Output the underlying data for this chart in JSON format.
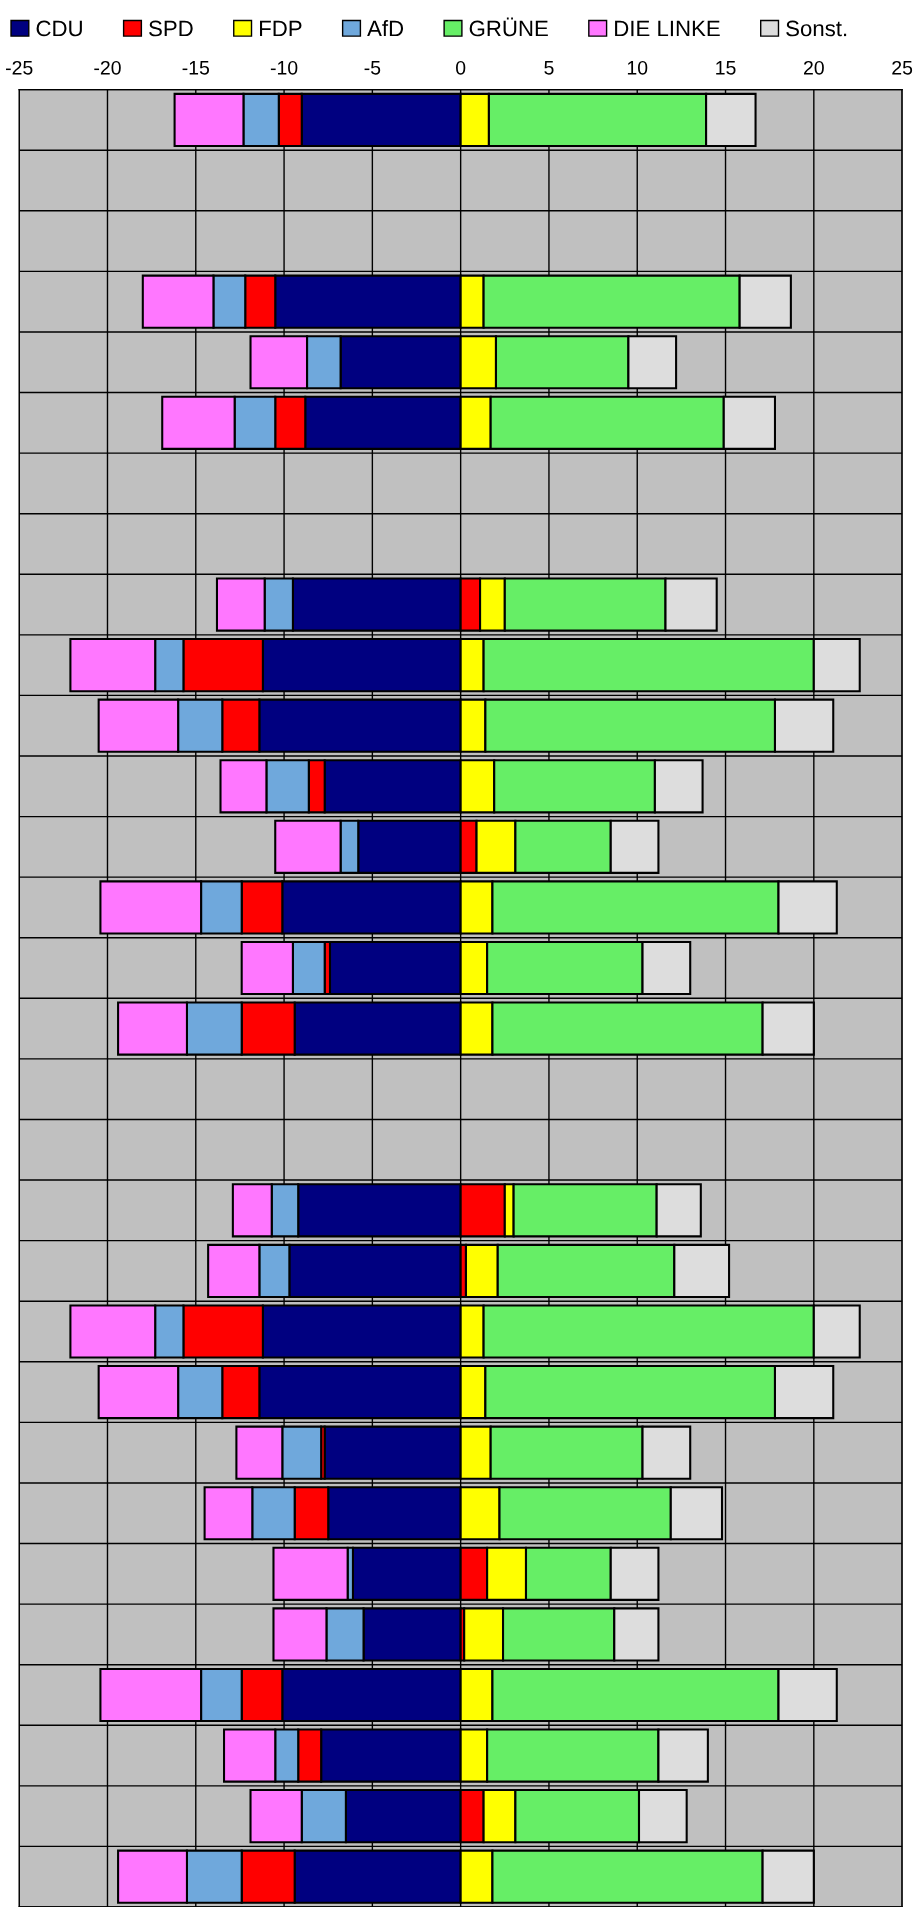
{
  "chart_data": {
    "type": "bar",
    "orientation": "horizontal",
    "stacked": true,
    "categories": [
      null,
      null,
      null,
      null,
      null,
      null,
      null,
      null,
      null,
      null,
      null,
      null,
      null,
      null,
      null,
      null,
      null,
      null,
      null,
      null,
      null,
      null,
      null,
      null,
      null,
      null,
      null,
      null,
      null,
      null
    ],
    "xlim": [
      -25,
      25
    ],
    "xticks": [
      -25,
      -20,
      -15,
      -10,
      -5,
      0,
      5,
      10,
      15,
      20,
      25
    ],
    "grid": true,
    "legend": "top",
    "series": [
      {
        "name": "CDU",
        "color": "#000080",
        "values": [
          -9.0,
          null,
          null,
          -10.5,
          -6.8,
          -8.8,
          null,
          null,
          -9.5,
          -11.2,
          -11.4,
          -7.7,
          -5.8,
          -10.1,
          -7.4,
          -9.4,
          null,
          null,
          -9.2,
          -9.7,
          -11.2,
          -11.4,
          -7.7,
          -7.5,
          -6.1,
          -5.5,
          -10.1,
          -7.9,
          -6.5,
          -9.4
        ]
      },
      {
        "name": "SPD",
        "color": "#ff0000",
        "values": [
          -1.3,
          null,
          null,
          -1.7,
          null,
          -1.7,
          null,
          null,
          1.1,
          -4.5,
          -2.1,
          -0.9,
          0.9,
          -2.3,
          -0.3,
          -3.0,
          null,
          null,
          2.5,
          0.3,
          -4.5,
          -2.1,
          -0.2,
          -1.9,
          1.5,
          0.2,
          -2.3,
          -1.3,
          1.3,
          -3.0
        ]
      },
      {
        "name": "FDP",
        "color": "#ffff00",
        "values": [
          1.6,
          null,
          null,
          1.3,
          2.0,
          1.7,
          null,
          null,
          1.4,
          1.3,
          1.4,
          1.9,
          2.2,
          1.8,
          1.5,
          1.8,
          null,
          null,
          0.5,
          1.8,
          1.3,
          1.4,
          1.7,
          2.2,
          2.2,
          2.2,
          1.8,
          1.5,
          1.8,
          1.8
        ]
      },
      {
        "name": "AfD",
        "color": "#6fa8dc",
        "values": [
          -2.0,
          null,
          null,
          -1.8,
          -1.9,
          -2.3,
          null,
          null,
          -1.6,
          -1.6,
          -2.5,
          -2.4,
          -1.0,
          -2.3,
          -1.8,
          -3.1,
          null,
          null,
          -1.5,
          -1.7,
          -1.6,
          -2.5,
          -2.2,
          -2.4,
          -0.3,
          -2.1,
          -2.3,
          -1.3,
          -2.5,
          -3.1
        ]
      },
      {
        "name": "GRÜNE",
        "color": "#66ee66",
        "values": [
          12.3,
          null,
          null,
          14.5,
          7.5,
          13.2,
          null,
          null,
          9.1,
          18.7,
          16.4,
          9.1,
          5.4,
          16.2,
          8.8,
          15.3,
          null,
          null,
          8.1,
          10.0,
          18.7,
          16.4,
          8.6,
          9.7,
          4.8,
          6.3,
          16.2,
          9.7,
          7.0,
          15.3
        ]
      },
      {
        "name": "DIE LINKE",
        "color": "#ff77ff",
        "values": [
          -3.9,
          null,
          null,
          -4.0,
          -3.2,
          -4.1,
          null,
          null,
          -2.7,
          -4.8,
          -4.5,
          -2.6,
          -3.7,
          -5.7,
          -2.9,
          -3.9,
          null,
          null,
          -2.2,
          -2.9,
          -4.8,
          -4.5,
          -2.6,
          -2.7,
          -4.2,
          -3.0,
          -5.7,
          -2.9,
          -2.9,
          -3.9
        ]
      },
      {
        "name": "Sonst.",
        "color": "#dddddd",
        "values": [
          2.8,
          null,
          null,
          2.9,
          2.7,
          2.9,
          null,
          null,
          2.9,
          2.6,
          3.3,
          2.7,
          2.7,
          3.3,
          2.7,
          2.9,
          null,
          null,
          2.5,
          3.1,
          2.6,
          3.3,
          2.7,
          2.9,
          2.7,
          2.5,
          3.3,
          2.8,
          2.7,
          2.9
        ]
      }
    ]
  }
}
